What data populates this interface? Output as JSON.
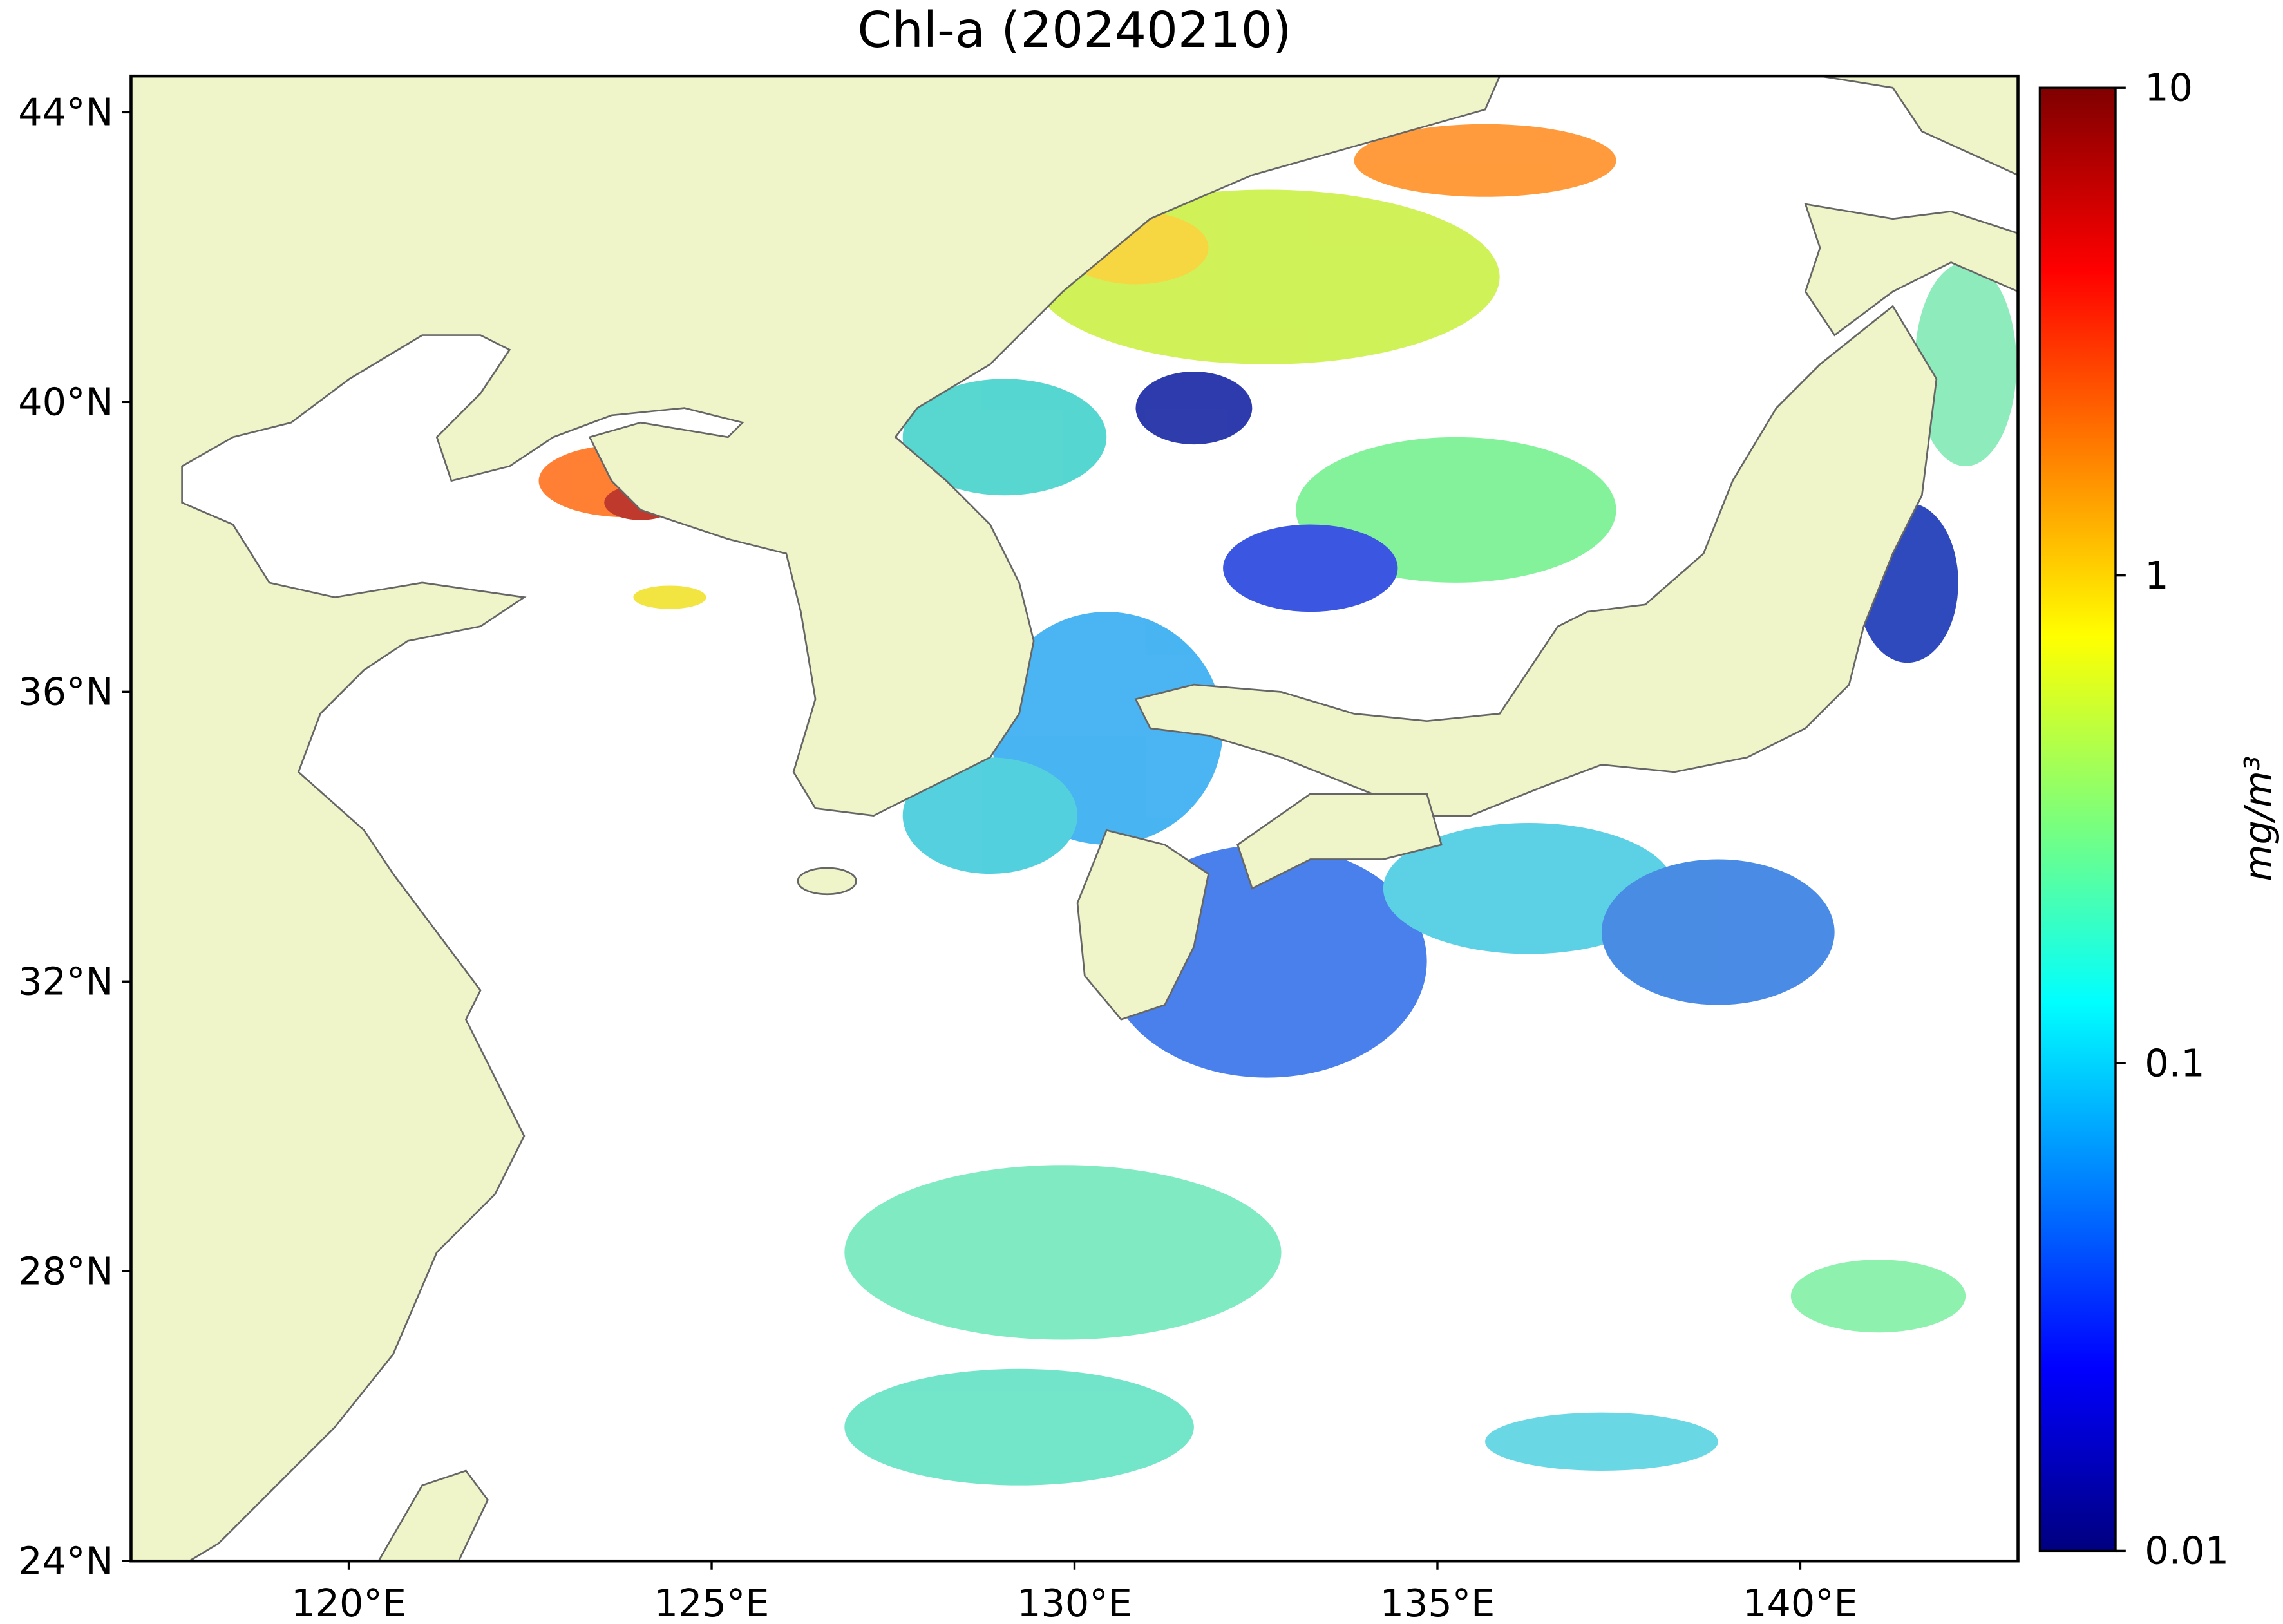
{
  "chart_data": {
    "type": "map",
    "title": "Chl-a (20240210)",
    "xlim": [
      117,
      143
    ],
    "ylim": [
      24,
      44.5
    ],
    "xticks": [
      {
        "value": 120,
        "label": "120°E"
      },
      {
        "value": 125,
        "label": "125°E"
      },
      {
        "value": 130,
        "label": "130°E"
      },
      {
        "value": 135,
        "label": "135°E"
      },
      {
        "value": 140,
        "label": "140°E"
      }
    ],
    "yticks": [
      {
        "value": 24,
        "label": "24°N"
      },
      {
        "value": 28,
        "label": "28°N"
      },
      {
        "value": 32,
        "label": "32°N"
      },
      {
        "value": 36,
        "label": "36°N"
      },
      {
        "value": 40,
        "label": "40°N"
      },
      {
        "value": 44,
        "label": "44°N"
      }
    ],
    "colorbar": {
      "label": "mg/m³",
      "log_scale": true,
      "lim": [
        0.01,
        10
      ],
      "ticks": [
        0.01,
        0.1,
        1,
        10
      ],
      "colormap": "jet"
    }
  }
}
